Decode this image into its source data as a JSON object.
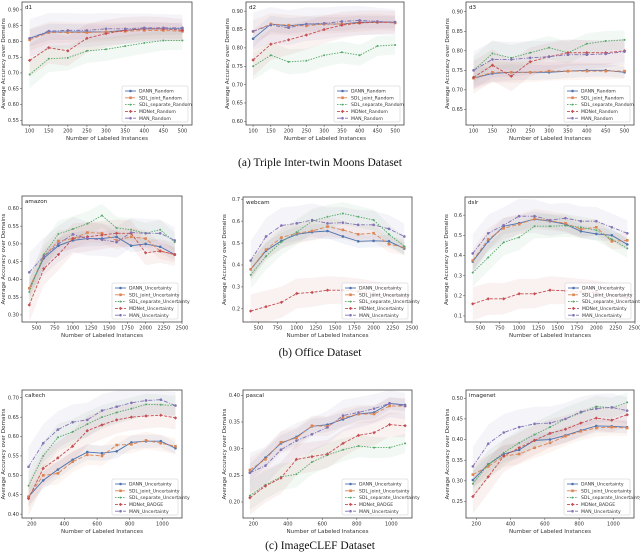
{
  "captions": [
    "(a) Triple Inter-twin Moons Dataset",
    "(b) Office Dataset",
    "(c) ImageCLEF Dataset"
  ],
  "colors": {
    "DANN": "#4c72b0",
    "SDL_joint": "#dd8452",
    "SDL_separate": "#55a868",
    "MDNet": "#c44e52",
    "MAN": "#8172b3"
  },
  "chart_data": [
    {
      "type": "line",
      "title": "d1",
      "xlabel": "Number of Labeled Instances",
      "ylabel": "Average Accuracy over Domains",
      "x": [
        100,
        150,
        200,
        250,
        300,
        350,
        400,
        450,
        500
      ],
      "xlim": [
        80,
        525
      ],
      "ylim": [
        0.535,
        0.925
      ],
      "xticks": [
        "100",
        "150",
        "200",
        "250",
        "300",
        "350",
        "400",
        "450",
        "500"
      ],
      "yticks": [
        "0.55",
        "0.60",
        "0.65",
        "0.70",
        "0.75",
        "0.80",
        "0.85",
        "0.90"
      ],
      "legend": "bottom-right",
      "grid": false,
      "series": [
        {
          "name": "DANN_Random",
          "values": [
            0.81,
            0.83,
            0.83,
            0.83,
            0.83,
            0.835,
            0.84,
            0.84,
            0.84
          ]
        },
        {
          "name": "SDL_joint_Random",
          "values": [
            0.805,
            0.828,
            0.828,
            0.828,
            0.83,
            0.832,
            0.835,
            0.835,
            0.832
          ]
        },
        {
          "name": "SDL_separate_Random",
          "values": [
            0.695,
            0.745,
            0.748,
            0.77,
            0.775,
            0.785,
            0.795,
            0.803,
            0.803
          ]
        },
        {
          "name": "MDNet_Random",
          "values": [
            0.74,
            0.78,
            0.77,
            0.81,
            0.825,
            0.835,
            0.84,
            0.84,
            0.835
          ]
        },
        {
          "name": "MAN_Random",
          "values": [
            0.81,
            0.833,
            0.835,
            0.835,
            0.84,
            0.84,
            0.843,
            0.843,
            0.843
          ]
        }
      ]
    },
    {
      "type": "line",
      "title": "d2",
      "xlabel": "Number of Labeled Instances",
      "ylabel": "Average Accuracy over Domains",
      "x": [
        100,
        150,
        200,
        250,
        300,
        350,
        400,
        450,
        500
      ],
      "xlim": [
        80,
        525
      ],
      "ylim": [
        0.59,
        0.925
      ],
      "xticks": [
        "100",
        "150",
        "200",
        "250",
        "300",
        "350",
        "400",
        "450",
        "500"
      ],
      "yticks": [
        "0.60",
        "0.65",
        "0.70",
        "0.75",
        "0.80",
        "0.85",
        "0.90"
      ],
      "legend": "bottom-right",
      "grid": false,
      "series": [
        {
          "name": "DANN_Random",
          "values": [
            0.825,
            0.865,
            0.86,
            0.865,
            0.865,
            0.865,
            0.87,
            0.87,
            0.87
          ]
        },
        {
          "name": "SDL_joint_Random",
          "values": [
            0.845,
            0.865,
            0.862,
            0.86,
            0.865,
            0.865,
            0.868,
            0.87,
            0.868
          ]
        },
        {
          "name": "SDL_separate_Random",
          "values": [
            0.75,
            0.78,
            0.762,
            0.765,
            0.78,
            0.788,
            0.78,
            0.805,
            0.808
          ]
        },
        {
          "name": "MDNet_Random",
          "values": [
            0.767,
            0.81,
            0.822,
            0.835,
            0.85,
            0.862,
            0.868,
            0.87,
            0.87
          ]
        },
        {
          "name": "MAN_Random",
          "values": [
            0.845,
            0.862,
            0.855,
            0.865,
            0.867,
            0.872,
            0.875,
            0.872,
            0.87
          ]
        }
      ]
    },
    {
      "type": "line",
      "title": "d3",
      "xlabel": "Number of Labeled Instances",
      "ylabel": "Average Accuracy over Domains",
      "x": [
        100,
        150,
        200,
        250,
        300,
        350,
        400,
        450,
        500
      ],
      "xlim": [
        80,
        525
      ],
      "ylim": [
        0.61,
        0.925
      ],
      "xticks": [
        "100",
        "150",
        "200",
        "250",
        "300",
        "350",
        "400",
        "450",
        "500"
      ],
      "yticks": [
        "0.65",
        "0.70",
        "0.75",
        "0.80",
        "0.85",
        "0.90"
      ],
      "legend": "bottom-right",
      "grid": false,
      "series": [
        {
          "name": "DANN_Random",
          "values": [
            0.73,
            0.742,
            0.745,
            0.745,
            0.745,
            0.748,
            0.75,
            0.75,
            0.745
          ]
        },
        {
          "name": "SDL_joint_Random",
          "values": [
            0.73,
            0.745,
            0.745,
            0.745,
            0.748,
            0.748,
            0.748,
            0.748,
            0.748
          ]
        },
        {
          "name": "SDL_separate_Random",
          "values": [
            0.75,
            0.793,
            0.782,
            0.795,
            0.808,
            0.795,
            0.818,
            0.825,
            0.828
          ]
        },
        {
          "name": "MDNet_Random",
          "values": [
            0.732,
            0.763,
            0.735,
            0.772,
            0.785,
            0.795,
            0.795,
            0.795,
            0.8
          ]
        },
        {
          "name": "MAN_Random",
          "values": [
            0.75,
            0.778,
            0.778,
            0.782,
            0.785,
            0.79,
            0.79,
            0.792,
            0.798
          ]
        }
      ]
    },
    {
      "type": "line",
      "title": "amazon",
      "xlabel": "Number of Labeled Instances",
      "ylabel": "Average Accuracy over Domains",
      "x": [
        400,
        600,
        800,
        1000,
        1200,
        1400,
        1600,
        1800,
        2000,
        2200,
        2400
      ],
      "xlim": [
        300,
        2500
      ],
      "ylim": [
        0.28,
        0.635
      ],
      "xticks": [
        "500",
        "750",
        "1000",
        "1250",
        "1500",
        "1750",
        "2000",
        "2250",
        "2500"
      ],
      "yticks": [
        "0.30",
        "0.35",
        "0.40",
        "0.45",
        "0.50",
        "0.55",
        "0.60"
      ],
      "legend": "bottom-right",
      "grid": false,
      "series": [
        {
          "name": "DANN_Uncertainty",
          "values": [
            0.375,
            0.46,
            0.495,
            0.51,
            0.515,
            0.515,
            0.52,
            0.495,
            0.5,
            0.492,
            0.47
          ]
        },
        {
          "name": "SDL_joint_Uncertainty",
          "values": [
            0.375,
            0.465,
            0.508,
            0.515,
            0.532,
            0.53,
            0.51,
            0.52,
            0.515,
            0.48,
            0.47
          ]
        },
        {
          "name": "SDL_separate_Uncertainty",
          "values": [
            0.365,
            0.47,
            0.528,
            0.542,
            0.557,
            0.58,
            0.545,
            0.54,
            0.53,
            0.54,
            0.505
          ]
        },
        {
          "name": "MDNet_Uncertainty",
          "values": [
            0.328,
            0.43,
            0.47,
            0.515,
            0.52,
            0.525,
            0.53,
            0.53,
            0.475,
            0.48,
            0.47
          ]
        },
        {
          "name": "MAN_Uncertainty",
          "values": [
            0.42,
            0.465,
            0.5,
            0.527,
            0.515,
            0.512,
            0.505,
            0.532,
            0.53,
            0.53,
            0.51
          ]
        }
      ]
    },
    {
      "type": "line",
      "title": "webcam",
      "xlabel": "Number of Labeled Instances",
      "ylabel": "Average Accuracy over Domains",
      "x": [
        400,
        600,
        800,
        1000,
        1200,
        1400,
        1600,
        1800,
        2000,
        2200,
        2400
      ],
      "xlim": [
        300,
        2500
      ],
      "ylim": [
        0.14,
        0.71
      ],
      "xticks": [
        "500",
        "750",
        "1000",
        "1250",
        "1500",
        "1750",
        "2000",
        "2250",
        "2500"
      ],
      "yticks": [
        "0.2",
        "0.3",
        "0.4",
        "0.5",
        "0.6",
        "0.7"
      ],
      "legend": "bottom-right",
      "grid": false,
      "series": [
        {
          "name": "DANN_Uncertainty",
          "values": [
            0.38,
            0.465,
            0.51,
            0.54,
            0.55,
            0.555,
            0.53,
            0.508,
            0.51,
            0.508,
            0.475
          ]
        },
        {
          "name": "SDL_joint_Uncertainty",
          "values": [
            0.38,
            0.47,
            0.525,
            0.545,
            0.555,
            0.575,
            0.56,
            0.54,
            0.545,
            0.495,
            0.48
          ]
        },
        {
          "name": "SDL_separate_Uncertainty",
          "values": [
            0.355,
            0.44,
            0.505,
            0.55,
            0.6,
            0.62,
            0.635,
            0.62,
            0.605,
            0.54,
            0.485
          ]
        },
        {
          "name": "MDNet_Uncertainty",
          "values": [
            0.19,
            0.21,
            0.23,
            0.27,
            0.275,
            0.285,
            0.285,
            0.28,
            0.27,
            0.26,
            0.255
          ]
        },
        {
          "name": "MAN_Uncertainty",
          "values": [
            0.42,
            0.53,
            0.58,
            0.59,
            0.605,
            0.59,
            0.593,
            0.583,
            0.583,
            0.565,
            0.53
          ]
        }
      ]
    },
    {
      "type": "line",
      "title": "dslr",
      "xlabel": "Number of Labeled Instances",
      "ylabel": "Average Accuracy over Domains",
      "x": [
        400,
        600,
        800,
        1000,
        1200,
        1400,
        1600,
        1800,
        2000,
        2200,
        2400
      ],
      "xlim": [
        300,
        2500
      ],
      "ylim": [
        0.07,
        0.69
      ],
      "xticks": [
        "500",
        "750",
        "1000",
        "1250",
        "1500",
        "1750",
        "2000",
        "2250",
        "2500"
      ],
      "yticks": [
        "0.1",
        "0.2",
        "0.3",
        "0.4",
        "0.5",
        "0.6"
      ],
      "legend": "bottom-right",
      "grid": false,
      "series": [
        {
          "name": "DANN_Uncertainty",
          "values": [
            0.37,
            0.47,
            0.545,
            0.56,
            0.58,
            0.57,
            0.555,
            0.52,
            0.507,
            0.5,
            0.455
          ]
        },
        {
          "name": "SDL_joint_Uncertainty",
          "values": [
            0.375,
            0.48,
            0.535,
            0.555,
            0.582,
            0.572,
            0.56,
            0.53,
            0.54,
            0.47,
            0.475
          ]
        },
        {
          "name": "SDL_separate_Uncertainty",
          "values": [
            0.315,
            0.39,
            0.465,
            0.49,
            0.545,
            0.545,
            0.548,
            0.54,
            0.525,
            0.48,
            0.435
          ]
        },
        {
          "name": "MDNet_Uncertainty",
          "values": [
            0.16,
            0.185,
            0.185,
            0.21,
            0.21,
            0.228,
            0.225,
            0.22,
            0.215,
            0.2,
            0.19
          ]
        },
        {
          "name": "MAN_Uncertainty",
          "values": [
            0.41,
            0.51,
            0.55,
            0.595,
            0.595,
            0.575,
            0.585,
            0.57,
            0.57,
            0.54,
            0.51
          ]
        }
      ]
    },
    {
      "type": "line",
      "title": "caltech",
      "xlabel": "Number of Labeled Instances",
      "ylabel": "Average Accuracy over Domains",
      "x": [
        180,
        270,
        360,
        450,
        540,
        630,
        720,
        810,
        900,
        990,
        1080
      ],
      "xlim": [
        140,
        1120
      ],
      "ylim": [
        0.39,
        0.72
      ],
      "xticks": [
        "200",
        "400",
        "600",
        "800",
        "1000"
      ],
      "yticks": [
        "0.40",
        "0.45",
        "0.50",
        "0.55",
        "0.60",
        "0.65",
        "0.70"
      ],
      "legend": "bottom-right",
      "grid": false,
      "series": [
        {
          "name": "DANN_Uncertainty",
          "values": [
            0.445,
            0.487,
            0.515,
            0.54,
            0.56,
            0.557,
            0.562,
            0.585,
            0.588,
            0.588,
            0.57
          ]
        },
        {
          "name": "SDL_joint_Uncertainty",
          "values": [
            0.445,
            0.5,
            0.505,
            0.535,
            0.553,
            0.55,
            0.578,
            0.58,
            0.59,
            0.583,
            0.575
          ]
        },
        {
          "name": "SDL_separate_Uncertainty",
          "values": [
            0.473,
            0.55,
            0.598,
            0.612,
            0.632,
            0.65,
            0.662,
            0.672,
            0.683,
            0.682,
            0.68
          ]
        },
        {
          "name": "MDNet_BADGE",
          "values": [
            0.44,
            0.518,
            0.545,
            0.575,
            0.615,
            0.63,
            0.643,
            0.65,
            0.653,
            0.655,
            0.648
          ]
        },
        {
          "name": "MAN_Uncertainty",
          "values": [
            0.522,
            0.583,
            0.618,
            0.637,
            0.643,
            0.667,
            0.677,
            0.687,
            0.693,
            0.695,
            0.68
          ]
        }
      ]
    },
    {
      "type": "line",
      "title": "pascal",
      "xlabel": "Number of Labeled Instances",
      "ylabel": "Average Accuracy over Domains",
      "x": [
        180,
        270,
        360,
        450,
        540,
        630,
        720,
        810,
        900,
        990,
        1080
      ],
      "xlim": [
        140,
        1120
      ],
      "ylim": [
        0.17,
        0.41
      ],
      "xticks": [
        "200",
        "400",
        "600",
        "800",
        "1000"
      ],
      "yticks": [
        "0.20",
        "0.25",
        "0.30",
        "0.35",
        "0.40"
      ],
      "legend": "bottom-right",
      "grid": false,
      "series": [
        {
          "name": "DANN_Uncertainty",
          "values": [
            0.255,
            0.283,
            0.31,
            0.322,
            0.342,
            0.345,
            0.355,
            0.365,
            0.368,
            0.385,
            0.382
          ]
        },
        {
          "name": "SDL_joint_Uncertainty",
          "values": [
            0.26,
            0.28,
            0.312,
            0.32,
            0.343,
            0.342,
            0.358,
            0.365,
            0.365,
            0.38,
            0.38
          ]
        },
        {
          "name": "SDL_separate_Uncertainty",
          "values": [
            0.212,
            0.232,
            0.247,
            0.252,
            0.275,
            0.288,
            0.298,
            0.305,
            0.302,
            0.302,
            0.31
          ]
        },
        {
          "name": "MDNet_BADGE",
          "values": [
            0.208,
            0.23,
            0.245,
            0.28,
            0.285,
            0.29,
            0.31,
            0.325,
            0.33,
            0.345,
            0.343
          ]
        },
        {
          "name": "MAN_Uncertainty",
          "values": [
            0.255,
            0.268,
            0.298,
            0.315,
            0.327,
            0.34,
            0.362,
            0.368,
            0.375,
            0.385,
            0.38
          ]
        }
      ]
    },
    {
      "type": "line",
      "title": "imagenet",
      "xlabel": "Number of Labeled Instances",
      "ylabel": "Average Accuracy over Domains",
      "x": [
        180,
        270,
        360,
        450,
        540,
        630,
        720,
        810,
        900,
        990,
        1080
      ],
      "xlim": [
        140,
        1120
      ],
      "ylim": [
        0.21,
        0.52
      ],
      "xticks": [
        "200",
        "400",
        "600",
        "800",
        "1000"
      ],
      "yticks": [
        "0.25",
        "0.30",
        "0.35",
        "0.40",
        "0.45",
        "0.50"
      ],
      "legend": "bottom-right",
      "grid": false,
      "series": [
        {
          "name": "DANN_Uncertainty",
          "values": [
            0.302,
            0.34,
            0.365,
            0.375,
            0.398,
            0.4,
            0.41,
            0.422,
            0.433,
            0.432,
            0.43
          ]
        },
        {
          "name": "SDL_joint_Uncertainty",
          "values": [
            0.315,
            0.335,
            0.36,
            0.365,
            0.38,
            0.392,
            0.408,
            0.42,
            0.428,
            0.43,
            0.428
          ]
        },
        {
          "name": "SDL_separate_Uncertainty",
          "values": [
            0.293,
            0.34,
            0.368,
            0.392,
            0.412,
            0.43,
            0.45,
            0.465,
            0.48,
            0.477,
            0.49
          ]
        },
        {
          "name": "MDNet_BADGE",
          "values": [
            0.262,
            0.31,
            0.36,
            0.38,
            0.398,
            0.415,
            0.425,
            0.44,
            0.452,
            0.447,
            0.46
          ]
        },
        {
          "name": "MAN_Uncertainty",
          "values": [
            0.335,
            0.39,
            0.417,
            0.43,
            0.438,
            0.44,
            0.45,
            0.467,
            0.475,
            0.478,
            0.47
          ]
        }
      ]
    }
  ]
}
